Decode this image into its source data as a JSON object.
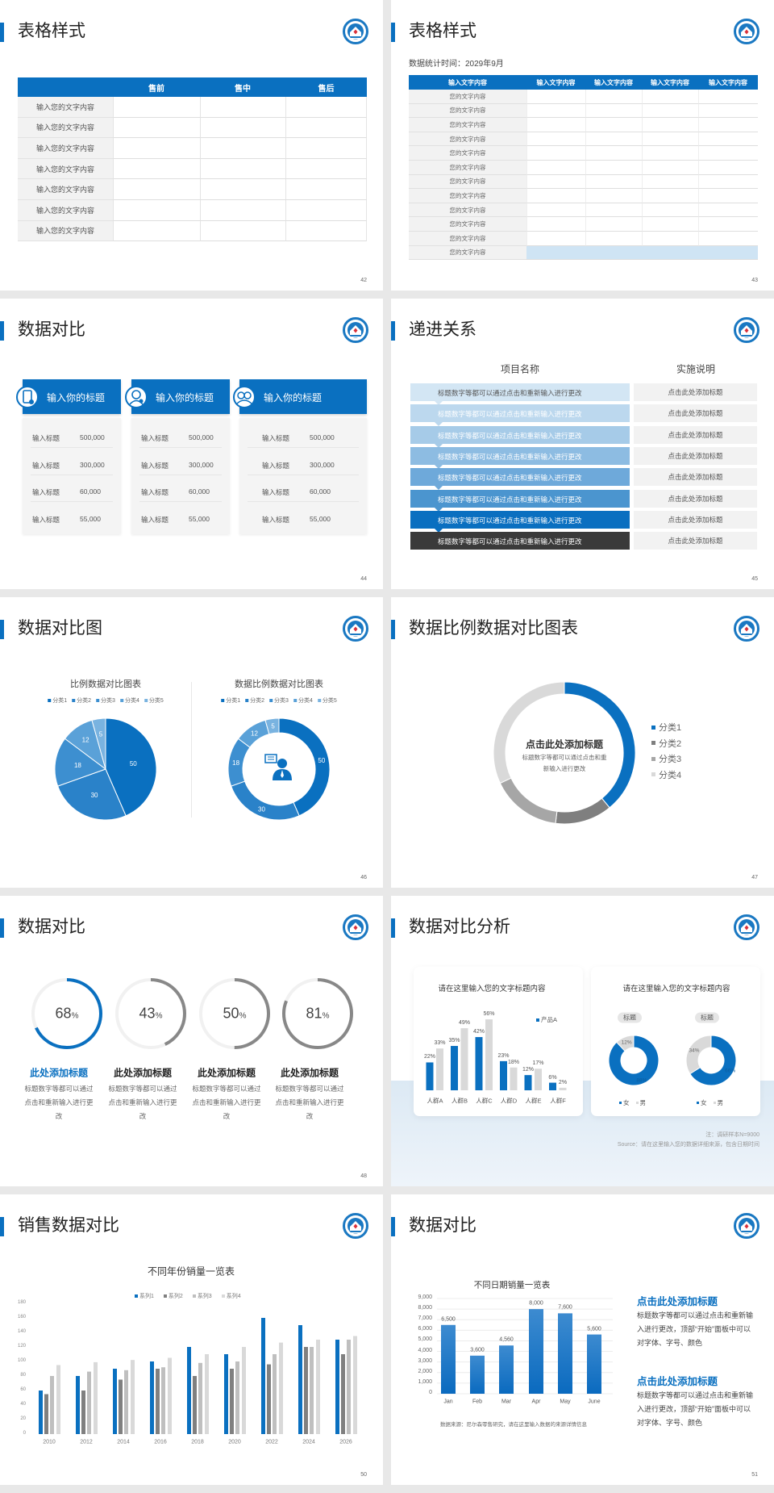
{
  "colors": {
    "accent": "#0a70c0",
    "gray_dark": "#7f7f7f",
    "gray_mid": "#a6a6a6",
    "gray_light": "#d9d9d9"
  },
  "logo_icon": "school-emblem-icon",
  "slides": [
    {
      "page": "42",
      "title": "表格样式",
      "headers": [
        "售前",
        "售中",
        "售后"
      ],
      "rows": [
        "输入您的文字内容",
        "输入您的文字内容",
        "输入您的文字内容",
        "输入您的文字内容",
        "输入您的文字内容",
        "输入您的文字内容",
        "输入您的文字内容"
      ]
    },
    {
      "page": "43",
      "title": "表格样式",
      "subtitle": "数据统计时间：2029年9月",
      "headers": [
        "输入文字内容",
        "输入文字内容",
        "输入文字内容",
        "输入文字内容",
        "输入文字内容"
      ],
      "rows": [
        "您的文字内容",
        "您的文字内容",
        "您的文字内容",
        "您的文字内容",
        "您的文字内容",
        "您的文字内容",
        "您的文字内容",
        "您的文字内容",
        "您的文字内容",
        "您的文字内容",
        "您的文字内容",
        "您的文字内容"
      ]
    },
    {
      "page": "44",
      "title": "数据对比",
      "cards": [
        {
          "title": "输入你的标题",
          "icon": "phone-user-icon",
          "rows": [
            {
              "label": "输入标题",
              "value": "500,000"
            },
            {
              "label": "输入标题",
              "value": "300,000"
            },
            {
              "label": "输入标题",
              "value": "60,000"
            },
            {
              "label": "输入标题",
              "value": "55,000"
            }
          ]
        },
        {
          "title": "输入你的标题",
          "icon": "user-settings-icon",
          "rows": [
            {
              "label": "输入标题",
              "value": "500,000"
            },
            {
              "label": "输入标题",
              "value": "300,000"
            },
            {
              "label": "输入标题",
              "value": "60,000"
            },
            {
              "label": "输入标题",
              "value": "55,000"
            }
          ]
        },
        {
          "title": "输入你的标题",
          "icon": "team-icon",
          "rows": [
            {
              "label": "输入标题",
              "value": "500,000"
            },
            {
              "label": "输入标题",
              "value": "300,000"
            },
            {
              "label": "输入标题",
              "value": "60,000"
            },
            {
              "label": "输入标题",
              "value": "55,000"
            }
          ]
        }
      ]
    },
    {
      "page": "45",
      "title": "递进关系",
      "col1": "项目名称",
      "col2": "实施说明",
      "step_colors": [
        "#d3e6f4",
        "#bcd8ee",
        "#a6cbe8",
        "#8dbce2",
        "#6ea9da",
        "#4b95cf",
        "#0a6fc0",
        "#3a3a3a"
      ],
      "steps": [
        {
          "text": "标题数字等都可以通过点击和重新输入进行更改",
          "note": "点击此处添加标题"
        },
        {
          "text": "标题数字等都可以通过点击和重新输入进行更改",
          "note": "点击此处添加标题"
        },
        {
          "text": "标题数字等都可以通过点击和重新输入进行更改",
          "note": "点击此处添加标题"
        },
        {
          "text": "标题数字等都可以通过点击和重新输入进行更改",
          "note": "点击此处添加标题"
        },
        {
          "text": "标题数字等都可以通过点击和重新输入进行更改",
          "note": "点击此处添加标题"
        },
        {
          "text": "标题数字等都可以通过点击和重新输入进行更改",
          "note": "点击此处添加标题"
        },
        {
          "text": "标题数字等都可以通过点击和重新输入进行更改",
          "note": "点击此处添加标题"
        },
        {
          "text": "标题数字等都可以通过点击和重新输入进行更改",
          "note": "点击此处添加标题"
        }
      ]
    },
    {
      "page": "46",
      "title": "数据对比图",
      "center_icon": "customer-service-icon"
    },
    {
      "page": "47",
      "title": "数据比例数据对比图表",
      "center_title": "点击此处添加标题",
      "center_text": "标题数字等都可以通过点击和重新输入进行更改"
    },
    {
      "page": "48",
      "title": "数据对比",
      "items": [
        {
          "value": 68,
          "unit": "%",
          "title": "此处添加标题",
          "text": "标题数字等都可以通过点击和重新输入进行更改"
        },
        {
          "value": 43,
          "unit": "%",
          "title": "此处添加标题",
          "text": "标题数字等都可以通过点击和重新输入进行更改"
        },
        {
          "value": 50,
          "unit": "%",
          "title": "此处添加标题",
          "text": "标题数字等都可以通过点击和重新输入进行更改"
        },
        {
          "value": 81,
          "unit": "%",
          "title": "此处添加标题",
          "text": "标题数字等都可以通过点击和重新输入进行更改"
        }
      ]
    },
    {
      "page": "49",
      "title": "数据对比分析",
      "card2_title": "请在这里输入您的文字标题内容",
      "note": "注：调研样本N=9000",
      "source": "Source：请在这里输入您的数据详细来源，包含日期时间"
    },
    {
      "page": "50",
      "title": "销售数据对比"
    },
    {
      "page": "51",
      "title": "数据对比",
      "blocks": [
        {
          "title": "点击此处添加标题",
          "text": "标题数字等都可以通过点击和重新输入进行更改，顶部“开始”面板中可以对字体、字号、颜色"
        },
        {
          "title": "点击此处添加标题",
          "text": "标题数字等都可以通过点击和重新输入进行更改，顶部“开始”面板中可以对字体、字号、颜色"
        }
      ]
    }
  ],
  "chart_data": [
    {
      "type": "pie",
      "title": "比例数据对比图表",
      "categories": [
        "分类1",
        "分类2",
        "分类3",
        "分类4",
        "分类5"
      ],
      "values": [
        50,
        30,
        18,
        12,
        5
      ],
      "colors": [
        "#0a70c0",
        "#2a82c9",
        "#3d8fd0",
        "#5aa1d8",
        "#79b3e0"
      ],
      "legend": "top"
    },
    {
      "type": "pie",
      "donut": true,
      "title": "数据比例数据对比图表",
      "categories": [
        "分类1",
        "分类2",
        "分类3",
        "分类4",
        "分类5"
      ],
      "values": [
        50,
        30,
        18,
        12,
        5
      ],
      "colors": [
        "#0a70c0",
        "#2a82c9",
        "#3d8fd0",
        "#5aa1d8",
        "#79b3e0"
      ],
      "legend": "top"
    },
    {
      "type": "pie",
      "donut": true,
      "categories": [
        "分类1",
        "分类2",
        "分类3",
        "分类4"
      ],
      "values": [
        39,
        13,
        16,
        32
      ],
      "colors": [
        "#0a70c0",
        "#7f7f7f",
        "#a6a6a6",
        "#d9d9d9"
      ],
      "legend": "right"
    },
    {
      "type": "bar",
      "title": "请在这里输入您的文字标题内容",
      "categories": [
        "人群A",
        "人群B",
        "人群C",
        "人群D",
        "人群E",
        "人群F"
      ],
      "unit": "%",
      "series": [
        {
          "name": "产品A",
          "values": [
            22,
            35,
            42,
            23,
            12,
            6
          ],
          "color": "#0a70c0"
        },
        {
          "values": [
            33,
            49,
            56,
            18,
            17,
            2
          ],
          "color": "#d9d9d9"
        }
      ],
      "legend": "top-right"
    },
    {
      "type": "pie",
      "donut": true,
      "badge": "标题",
      "categories": [
        "女",
        "男"
      ],
      "values": [
        88,
        12
      ],
      "labels": [
        "88%",
        "12%"
      ],
      "colors": [
        "#0a70c0",
        "#d9d9d9"
      ],
      "legend": "bottom"
    },
    {
      "type": "pie",
      "donut": true,
      "badge": "标题",
      "categories": [
        "女",
        "男"
      ],
      "values": [
        66,
        34
      ],
      "labels": [
        "66%",
        "34%"
      ],
      "colors": [
        "#0a70c0",
        "#d9d9d9"
      ],
      "legend": "bottom"
    },
    {
      "type": "bar",
      "title": "不同年份销量一览表",
      "categories": [
        "2010",
        "2012",
        "2014",
        "2016",
        "2018",
        "2020",
        "2022",
        "2024",
        "2026"
      ],
      "ylim": [
        0,
        180
      ],
      "yticks": [
        "0",
        "20",
        "40",
        "60",
        "80",
        "100",
        "120",
        "140",
        "160",
        "180"
      ],
      "legend": "top",
      "grid": false,
      "series": [
        {
          "name": "系列1",
          "color": "#0a70c0",
          "values": [
            60,
            80,
            90,
            100,
            120,
            110,
            160,
            150,
            130
          ]
        },
        {
          "name": "系列2",
          "color": "#808080",
          "values": [
            55,
            60,
            75,
            90,
            80,
            90,
            96,
            120,
            110
          ]
        },
        {
          "name": "系列3",
          "color": "#bfbfbf",
          "values": [
            80,
            86,
            88,
            92,
            98,
            100,
            110,
            120,
            130
          ]
        },
        {
          "name": "系列4",
          "color": "#d9d9d9",
          "values": [
            95,
            99,
            102,
            105,
            110,
            120,
            126,
            130,
            135
          ]
        }
      ]
    },
    {
      "type": "bar",
      "title": "不同日期销量一览表",
      "categories": [
        "Jan",
        "Feb",
        "Mar",
        "Apr",
        "May",
        "June"
      ],
      "values": [
        6500,
        3600,
        4560,
        8000,
        7600,
        5600
      ],
      "value_labels": [
        "6,500",
        "3,600",
        "4,560",
        "8,000",
        "7,600",
        "5,600"
      ],
      "ylim": [
        0,
        9000
      ],
      "yticks": [
        "0",
        "1,000",
        "2,000",
        "3,000",
        "4,000",
        "5,000",
        "6,000",
        "7,000",
        "8,000",
        "9,000"
      ],
      "grid": true,
      "source": "数据来源：尼尔森零售研究，请在这里输入数据的来源详情信息"
    }
  ]
}
